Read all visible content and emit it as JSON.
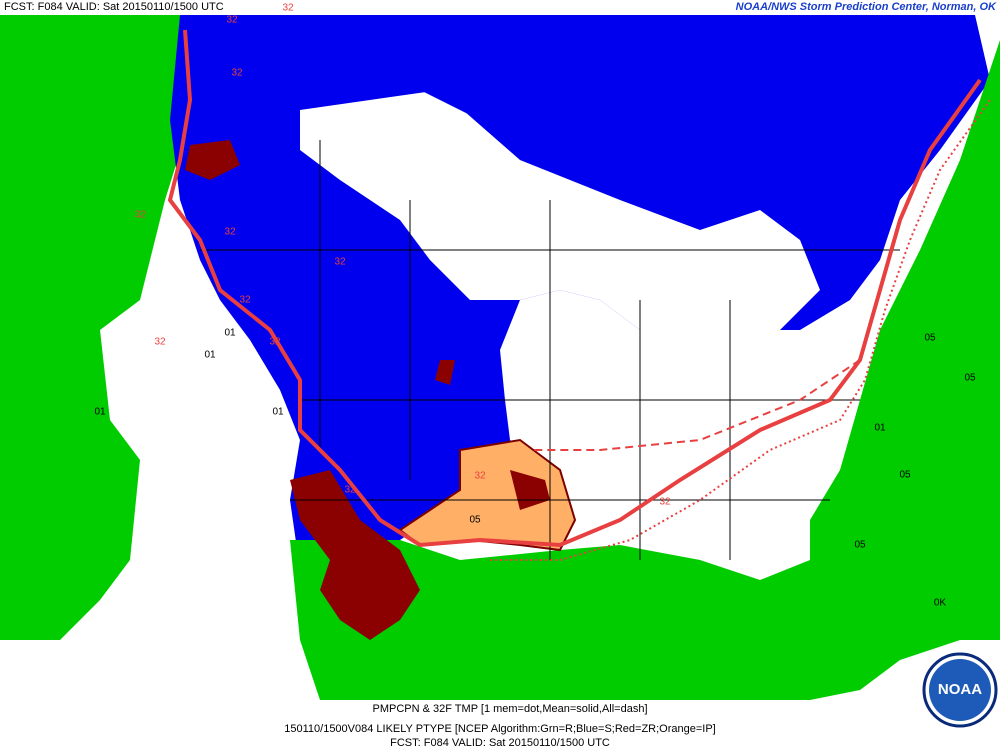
{
  "header": {
    "forecast": "FCST: F084  VALID: Sat 20150110/1500 UTC",
    "source": "NOAA/NWS Storm Prediction Center, Norman, OK"
  },
  "footer": {
    "line1": "PMPCPN & 32F TMP [1 mem=dot,Mean=solid,All=dash]",
    "line2": "150110/1500V084 LIKELY PTYPE [NCEP Algorithm:Grn=R;Blue=S;Red=ZR;Orange=IP]",
    "line3": "FCST: F084  VALID: Sat 20150110/1500 UTC"
  },
  "logo": "NOAA",
  "contour_labels": [
    "32",
    "32",
    "32",
    "32",
    "32",
    "32",
    "32",
    "32",
    "32",
    "32",
    "32",
    "32",
    "01",
    "01",
    "01",
    "01",
    "05",
    "05",
    "05",
    "05",
    "01",
    "05",
    "0K"
  ]
}
